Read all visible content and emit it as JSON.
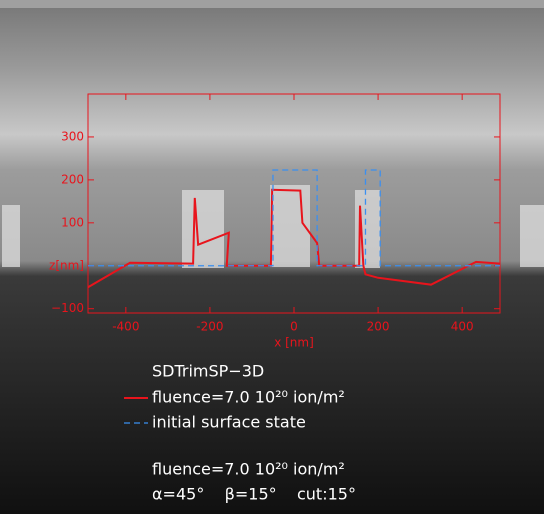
{
  "chart_data": {
    "type": "line",
    "title": "SDTrimSP−3D",
    "xlabel": "x [nm]",
    "xlim": [
      -490,
      490
    ],
    "xticks": [
      -400,
      -200,
      0,
      200,
      400
    ],
    "ylim": [
      -110,
      400
    ],
    "yticks": [
      {
        "value": -100,
        "label": "−100"
      },
      {
        "value": 0,
        "label": "z[nm]"
      },
      100,
      200,
      300
    ],
    "axis_color": "#e8141c",
    "series": [
      {
        "name": "fluence=7.0 10²⁰ ion/m²",
        "color": "#e8141c",
        "dash": false,
        "x": [
          -490,
          -390,
          -240,
          -236,
          -228,
          -155,
          -160,
          -55,
          -52,
          15,
          20,
          55,
          60,
          155,
          157,
          165,
          170,
          200,
          326,
          433,
          490
        ],
        "values": [
          -50,
          7,
          5,
          158,
          49,
          77,
          0,
          0,
          177,
          175,
          100,
          53,
          0,
          0,
          140,
          0,
          -20,
          -28,
          -44,
          9,
          5
        ]
      },
      {
        "name": "initial surface state",
        "color": "#3a8ff0",
        "dash": true,
        "x": [
          -490,
          -50,
          -50,
          55,
          55,
          170,
          170,
          205,
          205,
          490
        ],
        "values": [
          0,
          0,
          223,
          223,
          0,
          0,
          223,
          223,
          0,
          0
        ]
      }
    ],
    "annotations": [
      "fluence=7.0 10²⁰ ion/m²",
      "α=45°    β=15°    cut:15°"
    ]
  }
}
